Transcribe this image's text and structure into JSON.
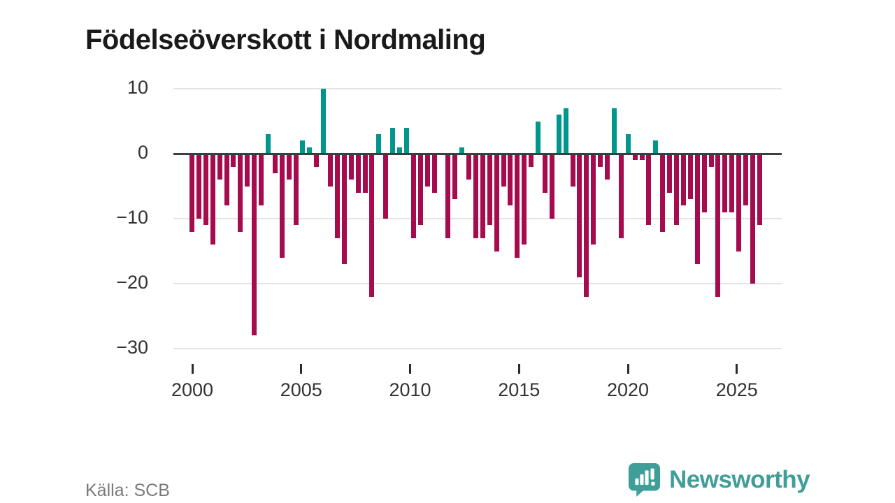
{
  "title": "Födelseöverskott i Nordmaling",
  "source": "Källa: SCB",
  "branding": {
    "name": "Newsworthy",
    "icon": "newsworthy-speech-bubble-chart-icon"
  },
  "colors": {
    "positive_bar": "#00968C",
    "negative_bar": "#A50B4D",
    "zero_line": "#3D3D3D",
    "grid": "#E4E4E4",
    "title_text": "#1A1A1A",
    "axis_text": "#333333",
    "source_text": "#7A7A7A",
    "brand_teal": "#3F9E98"
  },
  "chart_data": {
    "type": "bar",
    "title": "Födelseöverskott i Nordmaling",
    "xlabel": "",
    "ylabel": "",
    "start_year": 2000,
    "periods_per_year": 3,
    "x_ticks": [
      2000,
      2005,
      2010,
      2015,
      2020,
      2025
    ],
    "x_tick_labels": [
      "2000",
      "2005",
      "2010",
      "2015",
      "2020",
      "2025"
    ],
    "y_ticks": [
      10,
      0,
      -10,
      -20,
      -30
    ],
    "y_tick_labels": [
      "10",
      "0",
      "−10",
      "−20",
      "−30"
    ],
    "ylim": [
      -32,
      12
    ],
    "grid": true,
    "legend": "none",
    "values": [
      -12,
      -10,
      -11,
      -14,
      -4,
      -8,
      -2,
      -12,
      -5,
      -28,
      -8,
      3,
      -3,
      -16,
      -4,
      -11,
      2,
      1,
      -2,
      10,
      -5,
      -13,
      -17,
      -4,
      -6,
      -6,
      -22,
      3,
      -10,
      4,
      1,
      4,
      -13,
      -11,
      -5,
      -6,
      0,
      -13,
      -7,
      1,
      -4,
      -13,
      -13,
      -11,
      -15,
      -5,
      -8,
      -16,
      -14,
      -2,
      5,
      -6,
      -10,
      6,
      7,
      -5,
      -19,
      -22,
      -14,
      -2,
      -4,
      7,
      -13,
      3,
      -1,
      -1,
      -11,
      2,
      -12,
      -6,
      -11,
      -8,
      -7,
      -17,
      -9,
      -2,
      -22,
      -9,
      -9,
      -15,
      -8,
      -20,
      -11
    ]
  }
}
